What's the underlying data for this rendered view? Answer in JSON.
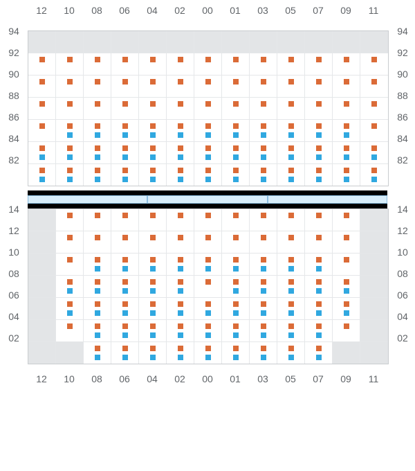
{
  "colors": {
    "grid_border": "#c9cccf",
    "grid_line": "#e5e7e9",
    "inactive_fill": "#e3e5e7",
    "marker_orange": "#db6b37",
    "marker_blue": "#30a8e0",
    "separator_bg": "#000000",
    "separator_box_fill": "#d8edfa",
    "separator_box_border": "#8bbde0",
    "text": "#606468"
  },
  "column_headers": [
    "12",
    "10",
    "08",
    "06",
    "04",
    "02",
    "00",
    "01",
    "03",
    "05",
    "07",
    "09",
    "11"
  ],
  "upper": {
    "row_labels": [
      "94",
      "92",
      "90",
      "88",
      "86",
      "84",
      "82"
    ],
    "cells": [
      [
        [
          "i"
        ],
        [
          "i"
        ],
        [
          "i"
        ],
        [
          "i"
        ],
        [
          "i"
        ],
        [
          "i"
        ],
        [
          "i"
        ],
        [
          "i"
        ],
        [
          "i"
        ],
        [
          "i"
        ],
        [
          "i"
        ],
        [
          "i"
        ],
        [
          "i"
        ]
      ],
      [
        [
          "o1"
        ],
        [
          "o1"
        ],
        [
          "o1"
        ],
        [
          "o1"
        ],
        [
          "o1"
        ],
        [
          "o1"
        ],
        [
          "o1"
        ],
        [
          "o1"
        ],
        [
          "o1"
        ],
        [
          "o1"
        ],
        [
          "o1"
        ],
        [
          "o1"
        ],
        [
          "o1"
        ]
      ],
      [
        [
          "o1"
        ],
        [
          "o1"
        ],
        [
          "o1"
        ],
        [
          "o1"
        ],
        [
          "o1"
        ],
        [
          "o1"
        ],
        [
          "o1"
        ],
        [
          "o1"
        ],
        [
          "o1"
        ],
        [
          "o1"
        ],
        [
          "o1"
        ],
        [
          "o1"
        ],
        [
          "o1"
        ]
      ],
      [
        [
          "o1"
        ],
        [
          "o1"
        ],
        [
          "o1"
        ],
        [
          "o1"
        ],
        [
          "o1"
        ],
        [
          "o1"
        ],
        [
          "o1"
        ],
        [
          "o1"
        ],
        [
          "o1"
        ],
        [
          "o1"
        ],
        [
          "o1"
        ],
        [
          "o1"
        ],
        [
          "o1"
        ]
      ],
      [
        [
          "o1"
        ],
        [
          "ob"
        ],
        [
          "ob"
        ],
        [
          "ob"
        ],
        [
          "ob"
        ],
        [
          "ob"
        ],
        [
          "ob"
        ],
        [
          "ob"
        ],
        [
          "ob"
        ],
        [
          "ob"
        ],
        [
          "ob"
        ],
        [
          "ob"
        ],
        [
          "o1"
        ]
      ],
      [
        [
          "ob"
        ],
        [
          "ob"
        ],
        [
          "ob"
        ],
        [
          "ob"
        ],
        [
          "ob"
        ],
        [
          "ob"
        ],
        [
          "ob"
        ],
        [
          "ob"
        ],
        [
          "ob"
        ],
        [
          "ob"
        ],
        [
          "ob"
        ],
        [
          "ob"
        ],
        [
          "ob"
        ]
      ],
      [
        [
          "ob"
        ],
        [
          "ob"
        ],
        [
          "ob"
        ],
        [
          "ob"
        ],
        [
          "ob"
        ],
        [
          "ob"
        ],
        [
          "ob"
        ],
        [
          "ob"
        ],
        [
          "ob"
        ],
        [
          "ob"
        ],
        [
          "ob"
        ],
        [
          "ob"
        ],
        [
          "ob"
        ]
      ]
    ]
  },
  "separator": {
    "boxes": 3
  },
  "lower": {
    "row_labels": [
      "14",
      "12",
      "10",
      "08",
      "06",
      "04",
      "02"
    ],
    "cells": [
      [
        [
          "i"
        ],
        [
          "o1"
        ],
        [
          "o1"
        ],
        [
          "o1"
        ],
        [
          "o1"
        ],
        [
          "o1"
        ],
        [
          "o1"
        ],
        [
          "o1"
        ],
        [
          "o1"
        ],
        [
          "o1"
        ],
        [
          "o1"
        ],
        [
          "o1"
        ],
        [
          "i"
        ]
      ],
      [
        [
          "i"
        ],
        [
          "o1"
        ],
        [
          "o1"
        ],
        [
          "o1"
        ],
        [
          "o1"
        ],
        [
          "o1"
        ],
        [
          "o1"
        ],
        [
          "o1"
        ],
        [
          "o1"
        ],
        [
          "o1"
        ],
        [
          "o1"
        ],
        [
          "o1"
        ],
        [
          "i"
        ]
      ],
      [
        [
          "i"
        ],
        [
          "o1"
        ],
        [
          "ob"
        ],
        [
          "ob"
        ],
        [
          "ob"
        ],
        [
          "ob"
        ],
        [
          "ob"
        ],
        [
          "ob"
        ],
        [
          "ob"
        ],
        [
          "ob"
        ],
        [
          "ob"
        ],
        [
          "o1"
        ],
        [
          "i"
        ]
      ],
      [
        [
          "i"
        ],
        [
          "ob"
        ],
        [
          "ob"
        ],
        [
          "ob"
        ],
        [
          "ob"
        ],
        [
          "ob"
        ],
        [
          "o1"
        ],
        [
          "ob"
        ],
        [
          "ob"
        ],
        [
          "ob"
        ],
        [
          "ob"
        ],
        [
          "ob"
        ],
        [
          "i"
        ]
      ],
      [
        [
          "i"
        ],
        [
          "ob"
        ],
        [
          "ob"
        ],
        [
          "ob"
        ],
        [
          "ob"
        ],
        [
          "ob"
        ],
        [
          "ob"
        ],
        [
          "ob"
        ],
        [
          "ob"
        ],
        [
          "ob"
        ],
        [
          "ob"
        ],
        [
          "ob"
        ],
        [
          "i"
        ]
      ],
      [
        [
          "i"
        ],
        [
          "o1"
        ],
        [
          "ob"
        ],
        [
          "ob"
        ],
        [
          "ob"
        ],
        [
          "ob"
        ],
        [
          "ob"
        ],
        [
          "ob"
        ],
        [
          "ob"
        ],
        [
          "ob"
        ],
        [
          "ob"
        ],
        [
          "o1"
        ],
        [
          "i"
        ]
      ],
      [
        [
          "i"
        ],
        [
          "i"
        ],
        [
          "ob"
        ],
        [
          "ob"
        ],
        [
          "ob"
        ],
        [
          "ob"
        ],
        [
          "ob"
        ],
        [
          "ob"
        ],
        [
          "ob"
        ],
        [
          "ob"
        ],
        [
          "ob"
        ],
        [
          "i"
        ],
        [
          "i"
        ]
      ]
    ]
  },
  "cell_legend": {
    "i": "inactive",
    "o1": "orange-only",
    "ob": "orange-and-blue"
  }
}
